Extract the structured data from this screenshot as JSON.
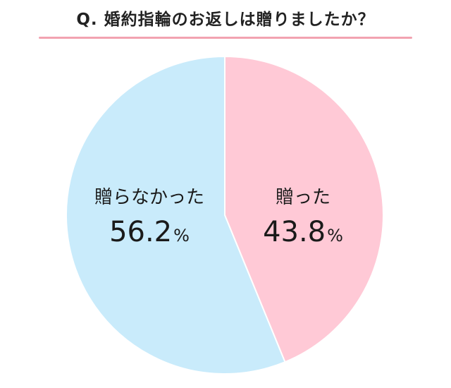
{
  "chart_data": {
    "type": "pie",
    "title": "Q. 婚約指輪のお返しは贈りましたか？",
    "slices": [
      {
        "label": "贈った",
        "value": 43.8,
        "display": "43.8",
        "unit": "%",
        "color": "#ffc9d6"
      },
      {
        "label": "贈らなかった",
        "value": 56.2,
        "display": "56.2",
        "unit": "%",
        "color": "#c9ebfb"
      }
    ]
  },
  "colors": {
    "title_rule": "#f2a3b1",
    "slice_border": "#ffffff"
  }
}
